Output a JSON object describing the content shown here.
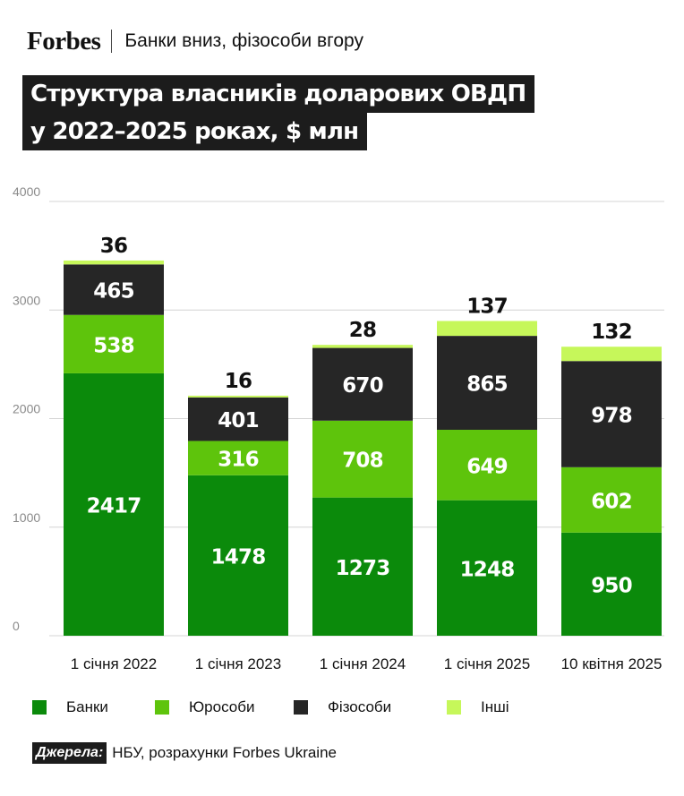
{
  "header": {
    "brand": "Forbes",
    "subtitle": "Банки вниз, фізособи вгору"
  },
  "title": {
    "line1": "Структура власників доларових ОВДП",
    "line2": "у 2022–2025 роках, $ млн"
  },
  "chart_data": {
    "type": "bar",
    "stacked": true,
    "title": "Структура власників доларових ОВДП у 2022–2025 роках, $ млн",
    "categories": [
      "1 січня 2022",
      "1 січня 2023",
      "1 січня 2024",
      "1 січня 2025",
      "10 квітня 2025"
    ],
    "series": [
      {
        "name": "Банки",
        "color": "#0b8a0b",
        "label_color": "#ffffff",
        "values": [
          2417,
          1478,
          1273,
          1248,
          950
        ]
      },
      {
        "name": "Юрособи",
        "color": "#5ec40c",
        "label_color": "#ffffff",
        "values": [
          538,
          316,
          708,
          649,
          602
        ]
      },
      {
        "name": "Фізособи",
        "color": "#262626",
        "label_color": "#ffffff",
        "values": [
          465,
          401,
          670,
          865,
          978
        ]
      },
      {
        "name": "Інші",
        "color": "#c6f75a",
        "label_color": "#111111",
        "values": [
          36,
          16,
          28,
          137,
          132
        ]
      }
    ],
    "ylim": [
      0,
      4000
    ],
    "yticks": [
      0,
      1000,
      2000,
      3000,
      4000
    ],
    "grid": true,
    "legend_position": "bottom"
  },
  "source": {
    "label": "Джерела:",
    "text": "НБУ, розрахунки Forbes Ukraine"
  }
}
